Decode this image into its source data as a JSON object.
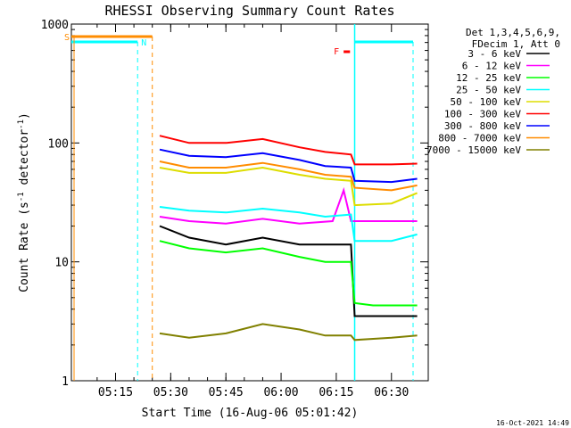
{
  "chart_data": {
    "type": "line",
    "title": "RHESSI Observing Summary Count Rates",
    "xlabel": "Start Time (16-Aug-06 05:01:42)",
    "ylabel_main": "Count Rate (s",
    "ylabel_sup1": "-1",
    "ylabel_mid": " detector",
    "ylabel_sup2": "-1",
    "ylabel_end": ")",
    "yscale": "log",
    "xlim": [
      "05:03",
      "06:40"
    ],
    "ylim": [
      1,
      1000
    ],
    "x_ticks": [
      "05:15",
      "05:30",
      "05:45",
      "06:00",
      "06:15",
      "06:30"
    ],
    "y_ticks": [
      "1000",
      "100",
      "10",
      "1"
    ],
    "footer_timestamp": "16-Oct-2021 14:49",
    "legend": {
      "header_lines": [
        "Det 1,3,4,5,6,9,",
        "FDecim 1, Att 0"
      ],
      "placement": "right"
    },
    "flags": [
      {
        "label": "S",
        "color": "#ff8c00"
      },
      {
        "label": "N",
        "color": "#00ffff"
      },
      {
        "label": "F",
        "color": "#ff0000"
      }
    ],
    "series": [
      {
        "name": "3 - 6 keV",
        "color": "#000000",
        "x": [
          "05:27",
          "05:35",
          "05:45",
          "05:55",
          "06:05",
          "06:12",
          "06:19",
          "06:20",
          "06:25",
          "06:37"
        ],
        "y": [
          20,
          16,
          14,
          16,
          14,
          14,
          14,
          3.5,
          3.5,
          3.5
        ]
      },
      {
        "name": "6 - 12 keV",
        "color": "#ff00ff",
        "x": [
          "05:27",
          "05:35",
          "05:45",
          "05:55",
          "06:05",
          "06:14",
          "06:17",
          "06:19",
          "06:20",
          "06:37"
        ],
        "y": [
          24,
          22,
          21,
          23,
          21,
          22,
          40,
          22,
          22,
          22
        ]
      },
      {
        "name": "12 - 25 keV",
        "color": "#00ff00",
        "x": [
          "05:27",
          "05:35",
          "05:45",
          "05:55",
          "06:05",
          "06:12",
          "06:19",
          "06:20",
          "06:25",
          "06:37"
        ],
        "y": [
          15,
          13,
          12,
          13,
          11,
          10,
          10,
          4.5,
          4.3,
          4.3
        ]
      },
      {
        "name": "25 - 50 keV",
        "color": "#00ffff",
        "x": [
          "05:27",
          "05:35",
          "05:45",
          "05:55",
          "06:05",
          "06:12",
          "06:19",
          "06:20",
          "06:30",
          "06:37"
        ],
        "y": [
          29,
          27,
          26,
          28,
          26,
          24,
          25,
          15,
          15,
          17
        ]
      },
      {
        "name": "50 - 100 keV",
        "color": "#dddd00",
        "x": [
          "05:27",
          "05:35",
          "05:45",
          "05:55",
          "06:05",
          "06:12",
          "06:19",
          "06:20",
          "06:30",
          "06:37"
        ],
        "y": [
          62,
          56,
          56,
          62,
          54,
          50,
          48,
          30,
          31,
          38
        ]
      },
      {
        "name": "100 - 300 keV",
        "color": "#ff0000",
        "x": [
          "05:27",
          "05:35",
          "05:45",
          "05:55",
          "06:05",
          "06:12",
          "06:19",
          "06:20",
          "06:30",
          "06:37"
        ],
        "y": [
          115,
          100,
          100,
          108,
          92,
          84,
          80,
          66,
          66,
          67
        ]
      },
      {
        "name": "300 - 800 keV",
        "color": "#0000ff",
        "x": [
          "05:27",
          "05:35",
          "05:45",
          "05:55",
          "06:05",
          "06:12",
          "06:19",
          "06:20",
          "06:30",
          "06:37"
        ],
        "y": [
          88,
          78,
          76,
          82,
          72,
          64,
          62,
          48,
          47,
          50
        ]
      },
      {
        "name": "800 - 7000 keV",
        "color": "#ff8c00",
        "x": [
          "05:27",
          "05:35",
          "05:45",
          "05:55",
          "06:05",
          "06:12",
          "06:19",
          "06:20",
          "06:30",
          "06:37"
        ],
        "y": [
          70,
          62,
          62,
          68,
          60,
          54,
          52,
          42,
          40,
          44
        ]
      },
      {
        "name": "7000 - 15000 keV",
        "color": "#808000",
        "x": [
          "05:27",
          "05:35",
          "05:45",
          "05:55",
          "06:05",
          "06:12",
          "06:19",
          "06:20",
          "06:30",
          "06:37"
        ],
        "y": [
          2.5,
          2.3,
          2.5,
          3,
          2.7,
          2.4,
          2.4,
          2.2,
          2.3,
          2.4
        ]
      }
    ],
    "grid": false
  }
}
